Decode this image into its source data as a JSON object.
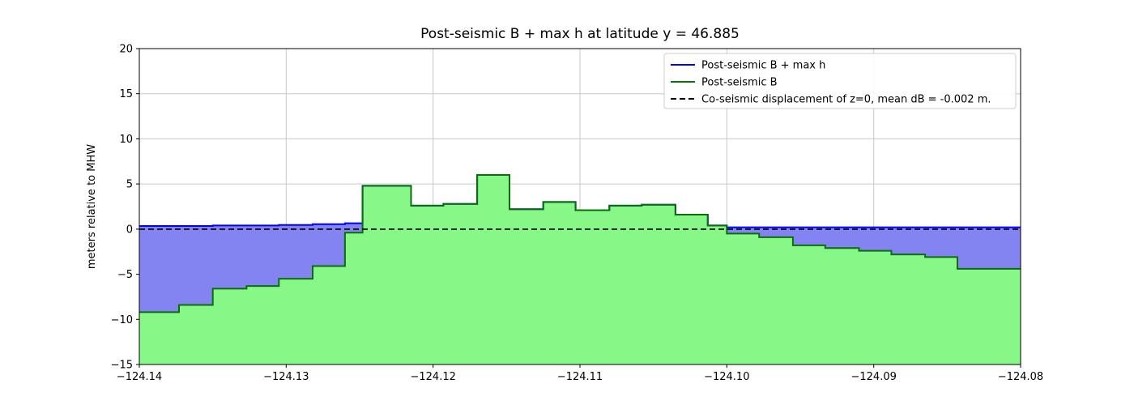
{
  "chart_data": {
    "type": "area",
    "title": "Post-seismic B + max h at latitude y = 46.885",
    "xlabel": "",
    "ylabel": "meters relative to MHW",
    "xlim": [
      -124.14,
      -124.08
    ],
    "ylim": [
      -15,
      20
    ],
    "grid": true,
    "xticks": {
      "values": [
        -124.14,
        -124.13,
        -124.12,
        -124.11,
        -124.1,
        -124.09,
        -124.08
      ],
      "labels": [
        "−124.14",
        "−124.13",
        "−124.12",
        "−124.11",
        "−124.10",
        "−124.09",
        "−124.08"
      ]
    },
    "yticks": {
      "values": [
        -15,
        -10,
        -5,
        0,
        5,
        10,
        15,
        20
      ],
      "labels": [
        "−15",
        "−10",
        "−5",
        "0",
        "5",
        "10",
        "15",
        "20"
      ]
    },
    "x_edges": [
      -124.14,
      -124.1373,
      -124.135,
      -124.1327,
      -124.1305,
      -124.1282,
      -124.126,
      -124.1248,
      -124.1215,
      -124.1193,
      -124.117,
      -124.1148,
      -124.1125,
      -124.1103,
      -124.108,
      -124.1058,
      -124.1035,
      -124.1013,
      -124.1,
      -124.0978,
      -124.0955,
      -124.0933,
      -124.091,
      -124.0888,
      -124.0865,
      -124.0843,
      -124.08
    ],
    "series": [
      {
        "name": "Post-seismic B + max h",
        "type": "step",
        "line_color": "#0000ff",
        "fill_color": "#8383f2",
        "values": [
          0.35,
          0.35,
          0.4,
          0.4,
          0.45,
          0.55,
          0.65,
          4.8,
          2.6,
          2.8,
          6.0,
          2.2,
          3.0,
          2.1,
          2.6,
          2.7,
          1.6,
          0.4,
          0.2,
          0.2,
          0.2,
          0.2,
          0.2,
          0.2,
          0.2,
          0.2
        ]
      },
      {
        "name": "Post-seismic B",
        "type": "step",
        "line_color": "#0b6e0b",
        "fill_color": "#87f787",
        "values": [
          -9.2,
          -8.4,
          -6.6,
          -6.3,
          -5.5,
          -4.1,
          -0.4,
          4.8,
          2.6,
          2.8,
          6.0,
          2.2,
          3.0,
          2.1,
          2.6,
          2.7,
          1.6,
          0.4,
          -0.5,
          -0.9,
          -1.8,
          -2.1,
          -2.4,
          -2.8,
          -3.1,
          -4.4
        ]
      },
      {
        "name": "Co-seismic displacement of z=0, mean dB = -0.002 m.",
        "type": "hline",
        "y": -0.002,
        "line_color": "#000000",
        "dash": true
      }
    ],
    "legend": {
      "position": "upper right",
      "entries": [
        {
          "label": "Post-seismic B + max h",
          "color": "#0000ff",
          "dash": false
        },
        {
          "label": "Post-seismic B",
          "color": "#0b6e0b",
          "dash": false
        },
        {
          "label": "Co-seismic displacement of z=0, mean dB = -0.002 m.",
          "color": "#000000",
          "dash": true
        }
      ]
    }
  }
}
